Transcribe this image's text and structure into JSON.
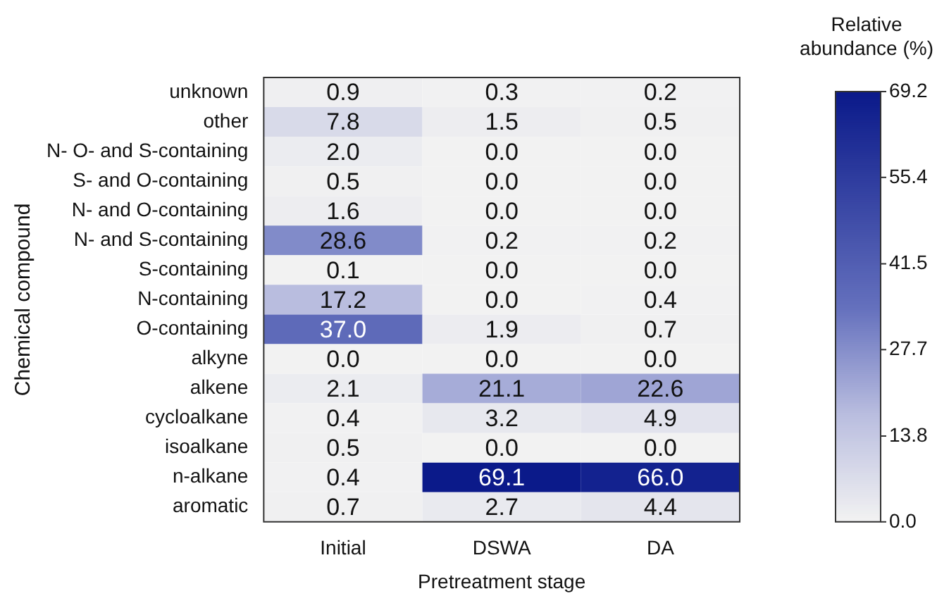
{
  "chart_data": {
    "type": "heatmap",
    "xlabel": "Pretreatment stage",
    "ylabel": "Chemical compound",
    "clabel": "Relative abundance (%)",
    "categories": [
      "Initial",
      "DSWA",
      "DA"
    ],
    "y_categories": [
      "unknown",
      "other",
      "N- O- and S-containing",
      "S- and O-containing",
      "N- and O-containing",
      "N- and S-containing",
      "S-containing",
      "N-containing",
      "O-containing",
      "alkyne",
      "alkene",
      "cycloalkane",
      "isoalkane",
      "n-alkane",
      "aromatic"
    ],
    "cells": [
      [
        0.9,
        0.3,
        0.2
      ],
      [
        7.8,
        1.5,
        0.5
      ],
      [
        2.0,
        0.0,
        0.0
      ],
      [
        0.5,
        0.0,
        0.0
      ],
      [
        1.6,
        0.0,
        0.0
      ],
      [
        28.6,
        0.2,
        0.2
      ],
      [
        0.1,
        0.0,
        0.0
      ],
      [
        17.2,
        0.0,
        0.4
      ],
      [
        37.0,
        1.9,
        0.7
      ],
      [
        0.0,
        0.0,
        0.0
      ],
      [
        2.1,
        21.1,
        22.6
      ],
      [
        0.4,
        3.2,
        4.9
      ],
      [
        0.5,
        0.0,
        0.0
      ],
      [
        0.4,
        69.1,
        66.0
      ],
      [
        0.7,
        2.7,
        4.4
      ]
    ],
    "cell_labels": [
      [
        "0.9",
        "0.3",
        "0.2"
      ],
      [
        "7.8",
        "1.5",
        "0.5"
      ],
      [
        "2.0",
        "0.0",
        "0.0"
      ],
      [
        "0.5",
        "0.0",
        "0.0"
      ],
      [
        "1.6",
        "0.0",
        "0.0"
      ],
      [
        "28.6",
        "0.2",
        "0.2"
      ],
      [
        "0.1",
        "0.0",
        "0.0"
      ],
      [
        "17.2",
        "0.0",
        "0.4"
      ],
      [
        "37.0",
        "1.9",
        "0.7"
      ],
      [
        "0.0",
        "0.0",
        "0.0"
      ],
      [
        "2.1",
        "21.1",
        "22.6"
      ],
      [
        "0.4",
        "3.2",
        "4.9"
      ],
      [
        "0.5",
        "0.0",
        "0.0"
      ],
      [
        "0.4",
        "69.1",
        "66.0"
      ],
      [
        "0.7",
        "2.7",
        "4.4"
      ]
    ],
    "clim": [
      0,
      69.2
    ],
    "cticks": [
      {
        "value": 0,
        "label": "0.0"
      },
      {
        "value": 13.8,
        "label": "13.8"
      },
      {
        "value": 27.7,
        "label": "27.7"
      },
      {
        "value": 41.5,
        "label": "41.5"
      },
      {
        "value": 55.4,
        "label": "55.4"
      },
      {
        "value": 69.2,
        "label": "69.2"
      }
    ]
  }
}
